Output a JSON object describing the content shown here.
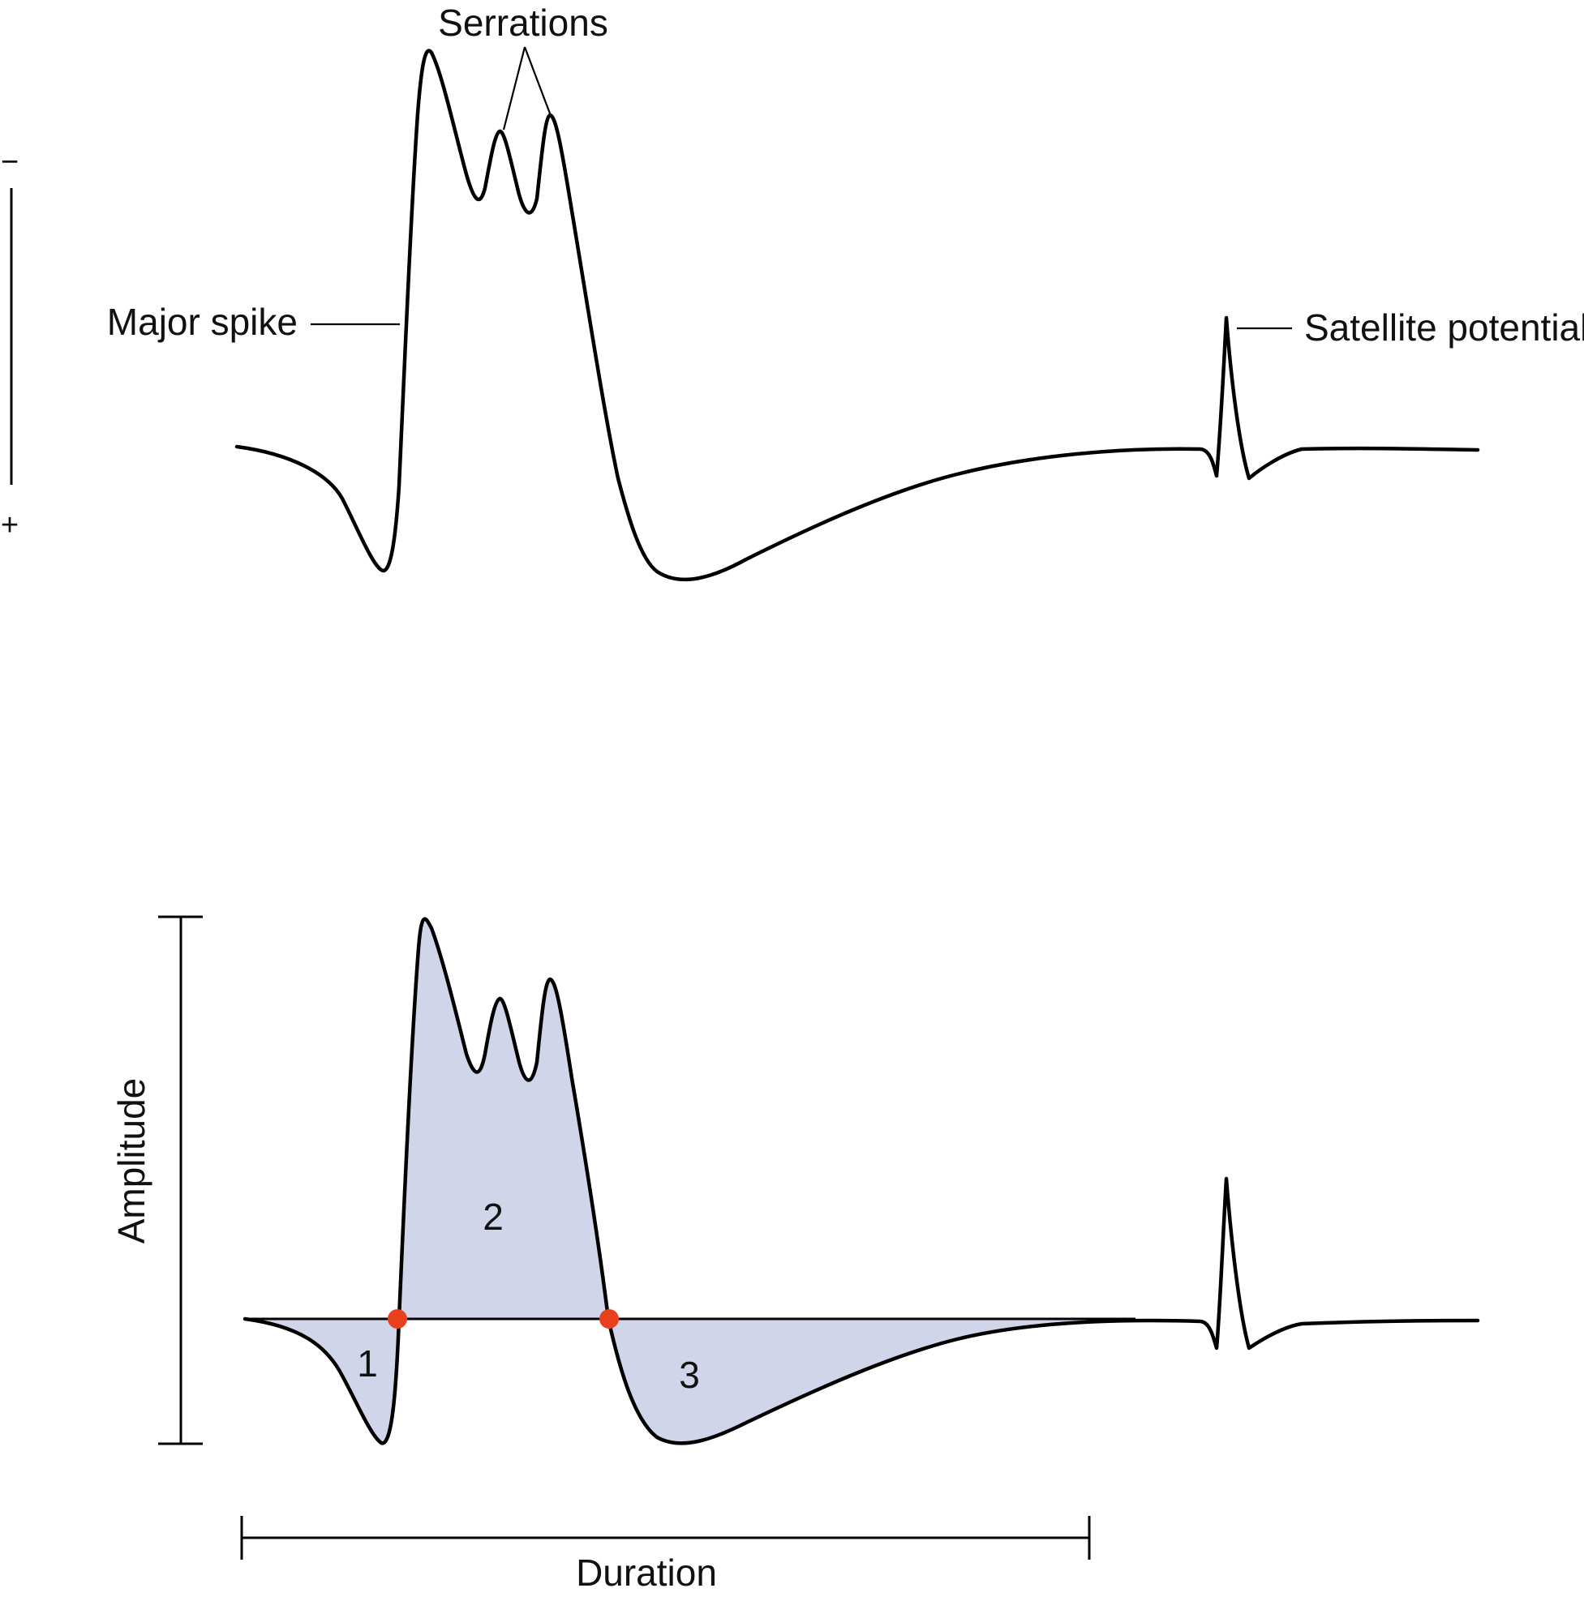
{
  "top_panel": {
    "polarity_minus": "−",
    "polarity_plus": "+",
    "serrations_label": "Serrations",
    "major_spike_label": "Major spike",
    "satellite_label": "Satellite potential"
  },
  "bottom_panel": {
    "amplitude_label": "Amplitude",
    "duration_label": "Duration",
    "phase_labels": [
      "1",
      "2",
      "3"
    ]
  },
  "colors": {
    "trace": "#000000",
    "phase_fill": "#d0d5ea",
    "crossing_marker": "#e8401c"
  }
}
